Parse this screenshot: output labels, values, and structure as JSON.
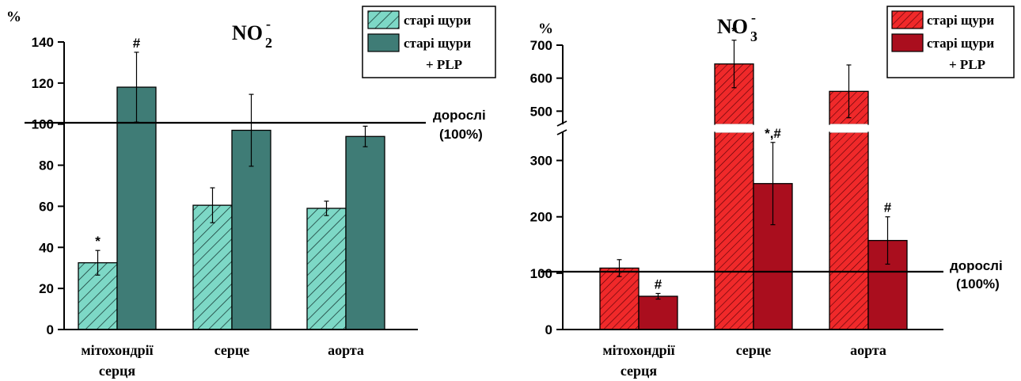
{
  "colors": {
    "left_light": "#7dd8c6",
    "left_dark": "#3f7c76",
    "right_light": "#f0292a",
    "right_dark": "#aa0e1e",
    "axis": "#000000"
  },
  "chart_data": [
    {
      "type": "bar",
      "title_main": "NO",
      "title_sub": "2",
      "title_sup": "-",
      "ylabel": "%",
      "ylim": [
        0,
        140
      ],
      "yticks": [
        "0",
        "20",
        "40",
        "60",
        "80",
        "100",
        "120",
        "140"
      ],
      "categories": [
        "мітохондрії серця",
        "серце",
        "аорта"
      ],
      "series": [
        {
          "name": "старі щури",
          "values": [
            32.5,
            60.5,
            59
          ],
          "errors": [
            6,
            8.5,
            3.5
          ],
          "annotations": [
            "*",
            "",
            ""
          ]
        },
        {
          "name": "старі щури + PLP",
          "values": [
            118,
            97,
            94
          ],
          "errors": [
            17,
            17.5,
            5
          ],
          "annotations": [
            "#",
            "",
            ""
          ]
        }
      ],
      "reference": {
        "value": 100,
        "label_line1": "дорослі",
        "label_line2": "(100%)"
      },
      "legend": {
        "entry1": "старі щури",
        "entry2_line1": "старі щури",
        "entry2_line2": "+ PLP"
      }
    },
    {
      "type": "bar",
      "title_main": "NO",
      "title_sub": "3",
      "title_sup": "-",
      "ylabel": "%",
      "ylim": [
        0,
        700
      ],
      "axis_break": [
        350,
        460
      ],
      "yticks_lower": [
        "0",
        "100",
        "200",
        "300"
      ],
      "yticks_upper": [
        "500",
        "600",
        "700"
      ],
      "categories": [
        "мітохондрії серця",
        "серце",
        "аорта"
      ],
      "series": [
        {
          "name": "старі щури",
          "values": [
            109,
            643,
            560
          ],
          "errors": [
            15,
            72,
            80
          ],
          "annotations": [
            "",
            "*",
            ""
          ]
        },
        {
          "name": "старі щури + PLP",
          "values": [
            59,
            259,
            158
          ],
          "errors": [
            5,
            73,
            42
          ],
          "annotations": [
            "#",
            "*,#",
            "#"
          ]
        }
      ],
      "reference": {
        "value": 100,
        "label_line1": "дорослі",
        "label_line2": "(100%)"
      },
      "legend": {
        "entry1": "старі щури",
        "entry2_line1": "старі щури",
        "entry2_line2": "+ PLP"
      }
    }
  ]
}
